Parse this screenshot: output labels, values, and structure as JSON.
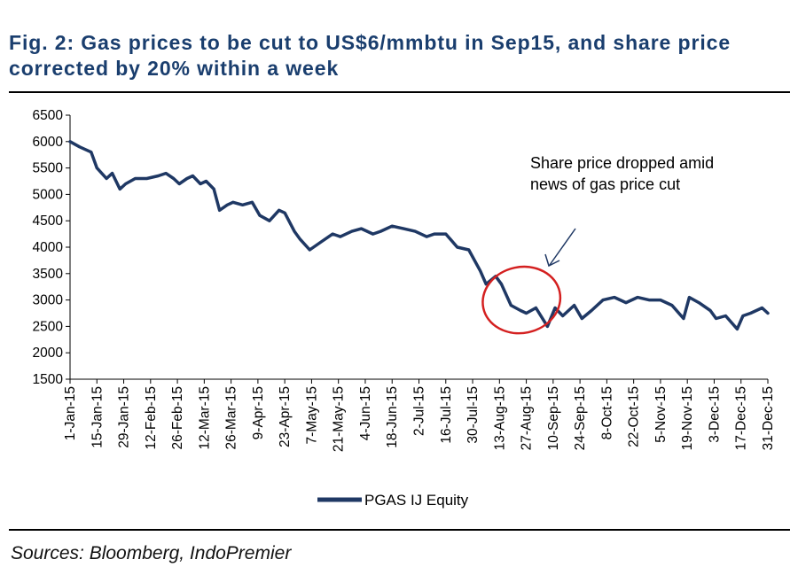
{
  "title": "Fig. 2: Gas prices to be cut to US$6/mmbtu in Sep15, and share price corrected by 20% within a week",
  "source": "Sources: Bloomberg, IndoPremier",
  "chart_data": {
    "type": "line",
    "x_type": "date",
    "xlim": [
      "2015-01-01",
      "2015-12-31"
    ],
    "ylim": [
      1500,
      6500
    ],
    "y_ticks": [
      1500,
      2000,
      2500,
      3000,
      3500,
      4000,
      4500,
      5000,
      5500,
      6000,
      6500
    ],
    "x_tick_labels": [
      "1-Jan-15",
      "15-Jan-15",
      "29-Jan-15",
      "12-Feb-15",
      "26-Feb-15",
      "12-Mar-15",
      "26-Mar-15",
      "9-Apr-15",
      "23-Apr-15",
      "7-May-15",
      "21-May-15",
      "4-Jun-15",
      "18-Jun-15",
      "2-Jul-15",
      "16-Jul-15",
      "30-Jul-15",
      "13-Aug-15",
      "27-Aug-15",
      "10-Sep-15",
      "24-Sep-15",
      "8-Oct-15",
      "22-Oct-15",
      "5-Nov-15",
      "19-Nov-15",
      "3-Dec-15",
      "17-Dec-15",
      "31-Dec-15"
    ],
    "x_tick_dates": [
      "2015-01-01",
      "2015-01-15",
      "2015-01-29",
      "2015-02-12",
      "2015-02-26",
      "2015-03-12",
      "2015-03-26",
      "2015-04-09",
      "2015-04-23",
      "2015-05-07",
      "2015-05-21",
      "2015-06-04",
      "2015-06-18",
      "2015-07-02",
      "2015-07-16",
      "2015-07-30",
      "2015-08-13",
      "2015-08-27",
      "2015-09-10",
      "2015-09-24",
      "2015-10-08",
      "2015-10-22",
      "2015-11-05",
      "2015-11-19",
      "2015-12-03",
      "2015-12-17",
      "2015-12-31"
    ],
    "grid": false,
    "legend": "bottom-center",
    "series": [
      {
        "name": "PGAS IJ Equity",
        "color": "#1f3864",
        "x": [
          "2015-01-01",
          "2015-01-06",
          "2015-01-12",
          "2015-01-15",
          "2015-01-20",
          "2015-01-23",
          "2015-01-27",
          "2015-01-30",
          "2015-02-04",
          "2015-02-10",
          "2015-02-16",
          "2015-02-20",
          "2015-02-24",
          "2015-02-27",
          "2015-03-03",
          "2015-03-06",
          "2015-03-10",
          "2015-03-13",
          "2015-03-17",
          "2015-03-20",
          "2015-03-24",
          "2015-03-27",
          "2015-04-01",
          "2015-04-06",
          "2015-04-10",
          "2015-04-15",
          "2015-04-20",
          "2015-04-23",
          "2015-04-28",
          "2015-05-01",
          "2015-05-06",
          "2015-05-12",
          "2015-05-18",
          "2015-05-22",
          "2015-05-28",
          "2015-06-02",
          "2015-06-08",
          "2015-06-12",
          "2015-06-18",
          "2015-06-24",
          "2015-06-30",
          "2015-07-06",
          "2015-07-10",
          "2015-07-16",
          "2015-07-22",
          "2015-07-28",
          "2015-08-03",
          "2015-08-06",
          "2015-08-11",
          "2015-08-14",
          "2015-08-19",
          "2015-08-24",
          "2015-08-27",
          "2015-09-01",
          "2015-09-07",
          "2015-09-11",
          "2015-09-15",
          "2015-09-21",
          "2015-09-25",
          "2015-09-30",
          "2015-10-06",
          "2015-10-12",
          "2015-10-18",
          "2015-10-24",
          "2015-10-30",
          "2015-11-05",
          "2015-11-11",
          "2015-11-17",
          "2015-11-20",
          "2015-11-25",
          "2015-12-01",
          "2015-12-04",
          "2015-12-09",
          "2015-12-15",
          "2015-12-18",
          "2015-12-22",
          "2015-12-28",
          "2015-12-31"
        ],
        "y": [
          6000,
          5900,
          5800,
          5500,
          5300,
          5400,
          5100,
          5200,
          5300,
          5300,
          5350,
          5400,
          5300,
          5200,
          5300,
          5350,
          5200,
          5250,
          5100,
          4700,
          4800,
          4850,
          4800,
          4850,
          4600,
          4500,
          4700,
          4650,
          4300,
          4150,
          3950,
          4100,
          4250,
          4200,
          4300,
          4350,
          4250,
          4300,
          4400,
          4350,
          4300,
          4200,
          4250,
          4250,
          4000,
          3950,
          3550,
          3300,
          3450,
          3300,
          2900,
          2800,
          2750,
          2850,
          2500,
          2850,
          2700,
          2900,
          2650,
          2800,
          3000,
          3050,
          2950,
          3050,
          3000,
          3000,
          2900,
          2650,
          3050,
          2950,
          2800,
          2650,
          2700,
          2450,
          2700,
          2750,
          2850,
          2750
        ]
      }
    ],
    "annotation": {
      "lines": [
        "Share price dropped amid",
        "news of gas price cut"
      ],
      "highlight_range": [
        "2015-08-06",
        "2015-09-12"
      ]
    }
  }
}
